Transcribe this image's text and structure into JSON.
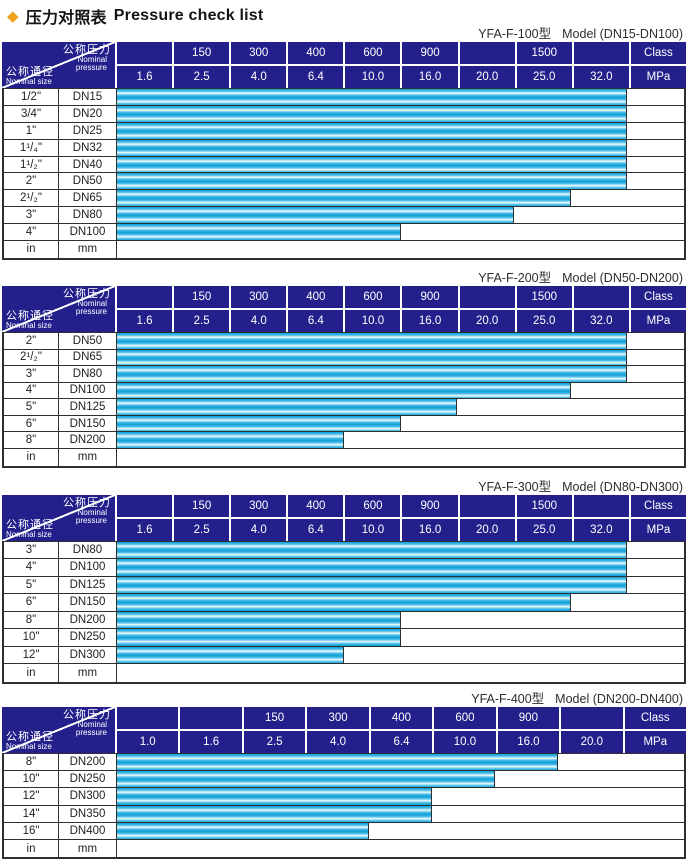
{
  "page": {
    "title_diamond": "◆",
    "title_zh": "压力对照表",
    "title_en": "Pressure check list"
  },
  "corner": {
    "pressure_zh": "公称压力",
    "pressure_en": "Nominal pressure",
    "size_zh": "公称通径",
    "size_en": "Nominal size"
  },
  "colors": {
    "header_navy": "#23208c",
    "bar_cyan": "#0d9ed6",
    "bar_highlight": "#f2fbfe",
    "diamond_orange": "#f0a21c",
    "border_dark": "#2f2f2f"
  },
  "tables": [
    {
      "subtitle_model": "YFA-F-100型",
      "subtitle_range": "Model (DN15-DN100)",
      "class_row": [
        "",
        "150",
        "300",
        "400",
        "600",
        "900",
        "",
        "1500",
        "",
        "Class"
      ],
      "mpa_row": [
        "1.6",
        "2.5",
        "4.0",
        "6.4",
        "10.0",
        "16.0",
        "20.0",
        "25.0",
        "32.0",
        "MPa"
      ],
      "rows": [
        {
          "size": "1/2\"",
          "dn": "DN15",
          "bar_cols": 9
        },
        {
          "size": "3/4\"",
          "dn": "DN20",
          "bar_cols": 9
        },
        {
          "size": "1\"",
          "dn": "DN25",
          "bar_cols": 9
        },
        {
          "size": "1¹/₄\"",
          "dn": "DN32",
          "bar_cols": 9
        },
        {
          "size": "1¹/₂\"",
          "dn": "DN40",
          "bar_cols": 9
        },
        {
          "size": "2\"",
          "dn": "DN50",
          "bar_cols": 9
        },
        {
          "size": "2¹/₂\"",
          "dn": "DN65",
          "bar_cols": 8
        },
        {
          "size": "3\"",
          "dn": "DN80",
          "bar_cols": 7
        },
        {
          "size": "4\"",
          "dn": "DN100",
          "bar_cols": 5
        },
        {
          "size": "in",
          "dn": "mm",
          "bar_cols": 0
        }
      ]
    },
    {
      "subtitle_model": "YFA-F-200型",
      "subtitle_range": "Model (DN50-DN200)",
      "class_row": [
        "",
        "150",
        "300",
        "400",
        "600",
        "900",
        "",
        "1500",
        "",
        "Class"
      ],
      "mpa_row": [
        "1.6",
        "2.5",
        "4.0",
        "6.4",
        "10.0",
        "16.0",
        "20.0",
        "25.0",
        "32.0",
        "MPa"
      ],
      "rows": [
        {
          "size": "2\"",
          "dn": "DN50",
          "bar_cols": 9
        },
        {
          "size": "2¹/₂\"",
          "dn": "DN65",
          "bar_cols": 9
        },
        {
          "size": "3\"",
          "dn": "DN80",
          "bar_cols": 9
        },
        {
          "size": "4\"",
          "dn": "DN100",
          "bar_cols": 8
        },
        {
          "size": "5\"",
          "dn": "DN125",
          "bar_cols": 6
        },
        {
          "size": "6\"",
          "dn": "DN150",
          "bar_cols": 5
        },
        {
          "size": "8\"",
          "dn": "DN200",
          "bar_cols": 4
        },
        {
          "size": "in",
          "dn": "mm",
          "bar_cols": 0
        }
      ]
    },
    {
      "subtitle_model": "YFA-F-300型",
      "subtitle_range": "Model (DN80-DN300)",
      "class_row": [
        "",
        "150",
        "300",
        "400",
        "600",
        "900",
        "",
        "1500",
        "",
        "Class"
      ],
      "mpa_row": [
        "1.6",
        "2.5",
        "4.0",
        "6.4",
        "10.0",
        "16.0",
        "20.0",
        "25.0",
        "32.0",
        "MPa"
      ],
      "rows": [
        {
          "size": "3\"",
          "dn": "DN80",
          "bar_cols": 9
        },
        {
          "size": "4\"",
          "dn": "DN100",
          "bar_cols": 9
        },
        {
          "size": "5\"",
          "dn": "DN125",
          "bar_cols": 9
        },
        {
          "size": "6\"",
          "dn": "DN150",
          "bar_cols": 8
        },
        {
          "size": "8\"",
          "dn": "DN200",
          "bar_cols": 5
        },
        {
          "size": "10\"",
          "dn": "DN250",
          "bar_cols": 5
        },
        {
          "size": "12\"",
          "dn": "DN300",
          "bar_cols": 4
        },
        {
          "size": "in",
          "dn": "mm",
          "bar_cols": 0
        }
      ]
    },
    {
      "subtitle_model": "YFA-F-400型",
      "subtitle_range": "Model (DN200-DN400)",
      "class_row": [
        "",
        "",
        "150",
        "300",
        "400",
        "600",
        "900",
        "",
        "Class"
      ],
      "mpa_row": [
        "1.0",
        "1.6",
        "2.5",
        "4.0",
        "6.4",
        "10.0",
        "16.0",
        "20.0",
        "MPa"
      ],
      "rows": [
        {
          "size": "8\"",
          "dn": "DN200",
          "bar_cols": 7
        },
        {
          "size": "10\"",
          "dn": "DN250",
          "bar_cols": 6
        },
        {
          "size": "12\"",
          "dn": "DN300",
          "bar_cols": 5
        },
        {
          "size": "14\"",
          "dn": "DN350",
          "bar_cols": 5
        },
        {
          "size": "16\"",
          "dn": "DN400",
          "bar_cols": 4
        },
        {
          "size": "in",
          "dn": "mm",
          "bar_cols": 0
        }
      ]
    }
  ]
}
